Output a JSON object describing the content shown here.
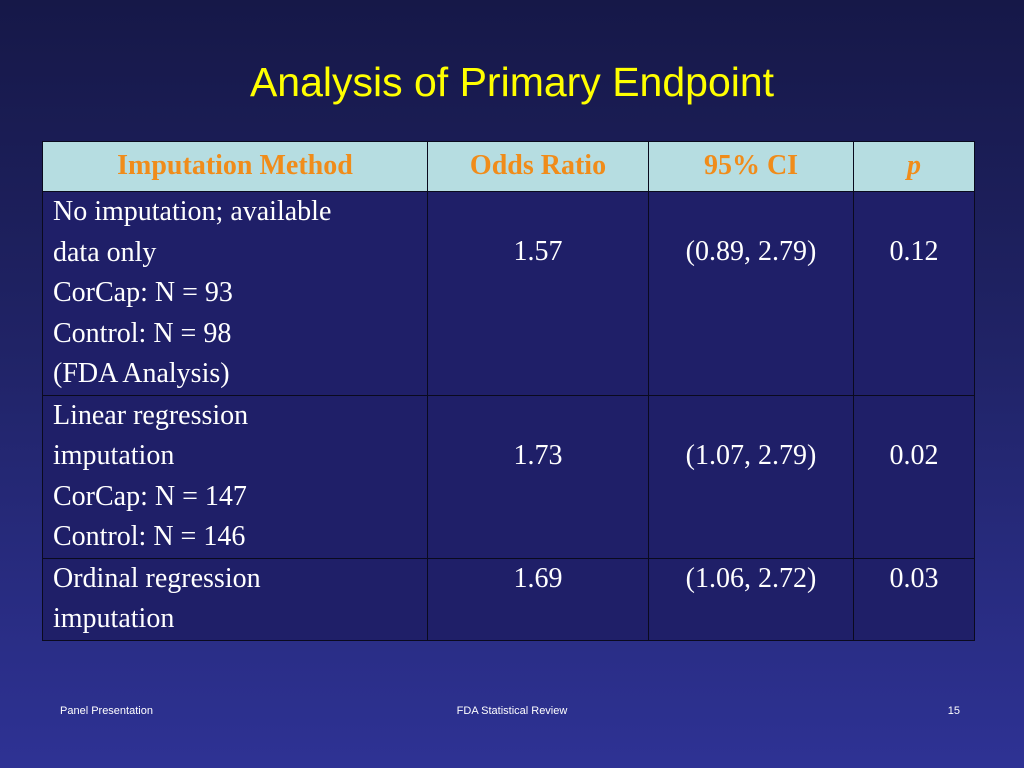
{
  "slide": {
    "title": "Analysis of Primary Endpoint"
  },
  "table": {
    "headers": [
      "Imputation Method",
      "Odds Ratio",
      "95% CI",
      "p"
    ],
    "rows": [
      {
        "method": [
          "No imputation; available",
          "data only",
          "CorCap: N = 93",
          "Control: N = 98",
          "(FDA Analysis)"
        ],
        "odds_ratio": "1.57",
        "ci": "(0.89, 2.79)",
        "p": "0.12"
      },
      {
        "method": [
          "Linear regression",
          "imputation",
          "CorCap: N = 147",
          "Control: N = 146"
        ],
        "odds_ratio": "1.73",
        "ci": "(1.07, 2.79)",
        "p": "0.02"
      },
      {
        "method": [
          "Ordinal regression",
          "imputation"
        ],
        "odds_ratio": "1.69",
        "ci": "(1.06, 2.72)",
        "p": "0.03"
      }
    ]
  },
  "footer": {
    "left": "Panel Presentation",
    "center": "FDA Statistical Review",
    "page_number": "15"
  },
  "colors": {
    "title": "#ffff00",
    "header_bg": "#b6dde1",
    "header_text": "#f08c1a",
    "cell_bg": "#1f1f68",
    "background_top": "#161848",
    "background_bottom": "#2e3294"
  }
}
